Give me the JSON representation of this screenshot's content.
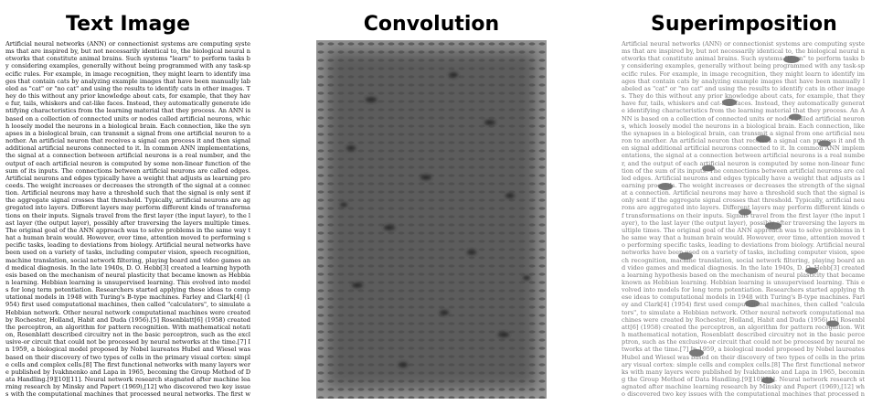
{
  "titles": {
    "left": "Text Image",
    "middle": "Convolution",
    "right": "Superimposition"
  },
  "body_text": "Artificial neural networks (ANN) or connectionist systems are computing systems that are inspired by, but not necessarily identical to, the biological neural networks that constitute animal brains. Such systems \"learn\" to perform tasks by considering examples, generally without being programmed with any task-specific rules. For example, in image recognition, they might learn to identify images that contain cats by analyzing example images that have been manually labeled as \"cat\" or \"no cat\" and using the results to identify cats in other images. They do this without any prior knowledge about cats, for example, that they have fur, tails, whiskers and cat-like faces. Instead, they automatically generate identifying characteristics from the learning material that they process. An ANN is based on a collection of connected units or nodes called artificial neurons, which loosely model the neurons in a biological brain. Each connection, like the synapses in a biological brain, can transmit a signal from one artificial neuron to another. An artificial neuron that receives a signal can process it and then signal additional artificial neurons connected to it. In common ANN implementations, the signal at a connection between artificial neurons is a real number, and the output of each artificial neuron is computed by some non-linear function of the sum of its inputs. The connections between artificial neurons are called edges. Artificial neurons and edges typically have a weight that adjusts as learning proceeds. The weight increases or decreases the strength of the signal at a connection. Artificial neurons may have a threshold such that the signal is only sent if the aggregate signal crosses that threshold. Typically, artificial neurons are aggregated into layers. Different layers may perform different kinds of transformations on their inputs. Signals travel from the first layer (the input layer), to the last layer (the output layer), possibly after traversing the layers multiple times. The original goal of the ANN approach was to solve problems in the same way that a human brain would. However, over time, attention moved to performing specific tasks, leading to deviations from biology. Artificial neural networks have been used on a variety of tasks, including computer vision, speech recognition, machine translation, social network filtering, playing board and video games and medical diagnosis. In the late 1940s, D. O. Hebb[3] created a learning hypothesis based on the mechanism of neural plasticity that became known as Hebbian learning. Hebbian learning is unsupervised learning. This evolved into models for long term potentiation. Researchers started applying these ideas to computational models in 1948 with Turing's B-type machines. Farley and Clark[4] (1954) first used computational machines, then called \"calculators\", to simulate a Hebbian network. Other neural network computational machines were created by Rochester, Holland, Habit and Duda (1956).[5] Rosenblatt[6] (1958) created the perceptron, an algorithm for pattern recognition. With mathematical notation, Rosenblatt described circuitry not in the basic perceptron, such as the exclusive-or circuit that could not be processed by neural networks at the time.[7] In 1959, a biological model proposed by Nobel laureates Hubel and Wiesel was based on their discovery of two types of cells in the primary visual cortex: simple cells and complex cells.[8] The first functional networks with many layers were published by Ivakhnenko and Lapa in 1965, becoming the Group Method of Data Handling.[9][10][11]. Neural network research stagnated after machine learning research by Minsky and Papert (1969),[12] who discovered two key issues with the computational machines that processed neural networks. The first was that basic perceptrons were incapable of ANN approach was to solve problems in the s"
}
